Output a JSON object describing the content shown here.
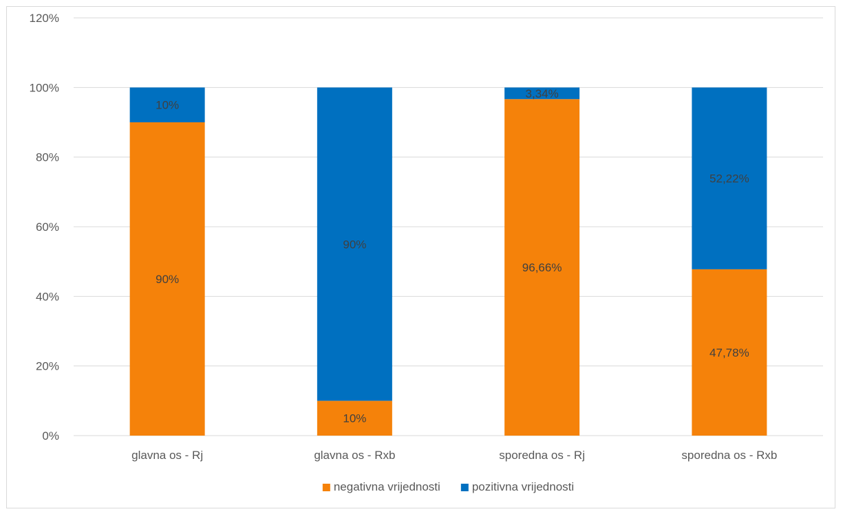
{
  "chart_data": {
    "type": "bar",
    "stacked": true,
    "categories": [
      "glavna os - Rj",
      "glavna os - Rxb",
      "sporedna os - Rj",
      "sporedna os - Rxb"
    ],
    "series": [
      {
        "name": "negativna vrijednosti",
        "color": "#f5820a",
        "values": [
          90,
          10,
          96.66,
          47.78
        ],
        "labels": [
          "90%",
          "10%",
          "96,66%",
          "47,78%"
        ]
      },
      {
        "name": "pozitivna vrijednosti",
        "color": "#0070c0",
        "values": [
          10,
          90,
          3.34,
          52.22
        ],
        "labels": [
          "10%",
          "90%",
          "3,34%",
          "52,22%"
        ]
      }
    ],
    "ylim": [
      0,
      120
    ],
    "yticks": [
      0,
      20,
      40,
      60,
      80,
      100,
      120
    ],
    "ytick_labels": [
      "0%",
      "20%",
      "40%",
      "60%",
      "80%",
      "100%",
      "120%"
    ],
    "grid": true,
    "legend_position": "bottom"
  }
}
